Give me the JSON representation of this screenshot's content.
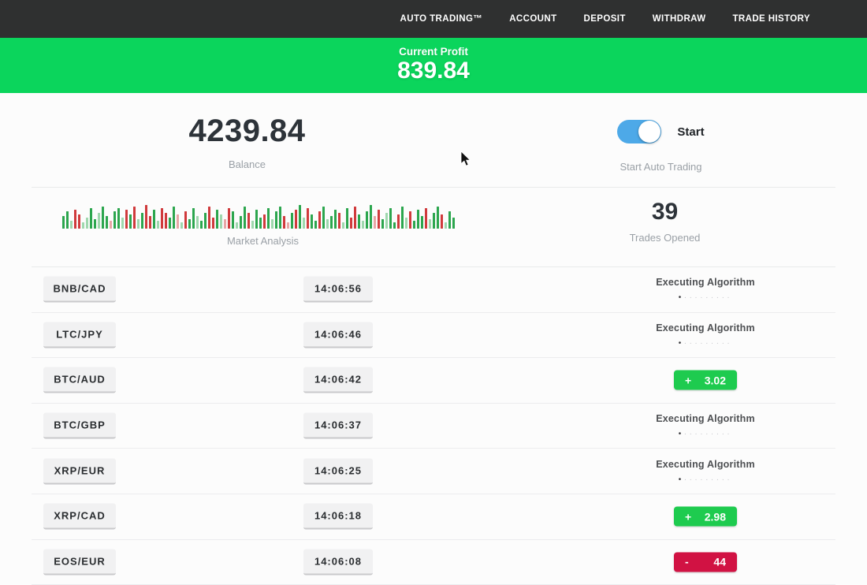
{
  "navbar": {
    "items": [
      {
        "label": "AUTO TRADING™"
      },
      {
        "label": "ACCOUNT"
      },
      {
        "label": "DEPOSIT"
      },
      {
        "label": "WITHDRAW"
      },
      {
        "label": "TRADE HISTORY"
      }
    ]
  },
  "profit_banner": {
    "label": "Current Profit",
    "value": "839.84",
    "bg_color": "#0bd55c"
  },
  "stats": {
    "balance": {
      "value": "4239.84",
      "label": "Balance"
    },
    "auto_trading": {
      "state": "on",
      "toggle_label": "Start",
      "caption": "Start Auto Trading",
      "toggle_color": "#4da9e8"
    },
    "market_analysis": {
      "label": "Market Analysis"
    },
    "trades_opened": {
      "value": "39",
      "label": "Trades Opened"
    }
  },
  "loader": {
    "active_dot": "•",
    "inactive_dots": "·········"
  },
  "colors": {
    "badge_green": "#1ecb4f",
    "badge_red": "#d11243",
    "navbar_bg": "#2f3030"
  },
  "trades": [
    {
      "pair": "BNB/CAD",
      "time": "14:06:56",
      "status": "Executing Algorithm"
    },
    {
      "pair": "LTC/JPY",
      "time": "14:06:46",
      "status": "Executing Algorithm"
    },
    {
      "pair": "BTC/AUD",
      "time": "14:06:42",
      "result_sign": "+",
      "result_value": "3.02",
      "result_type": "profit"
    },
    {
      "pair": "BTC/GBP",
      "time": "14:06:37",
      "status": "Executing Algorithm"
    },
    {
      "pair": "XRP/EUR",
      "time": "14:06:25",
      "status": "Executing Algorithm"
    },
    {
      "pair": "XRP/CAD",
      "time": "14:06:18",
      "result_sign": "+",
      "result_value": "2.98",
      "result_type": "profit"
    },
    {
      "pair": "EOS/EUR",
      "time": "14:06:08",
      "result_sign": "-",
      "result_value": "44",
      "result_type": "loss"
    }
  ],
  "chart_data": {
    "type": "bar",
    "title": "Market Analysis",
    "note": "decorative candlestick-style activity sparkline, bottom-aligned bars, heights in px",
    "palette": {
      "g": "#2ca64e",
      "r": "#d03a3c",
      "G": "#9fd8ae",
      "R": "#e8a6a6"
    },
    "bars": [
      [
        16,
        "g"
      ],
      [
        22,
        "g"
      ],
      [
        10,
        "G"
      ],
      [
        24,
        "r"
      ],
      [
        18,
        "r"
      ],
      [
        8,
        "G"
      ],
      [
        14,
        "G"
      ],
      [
        26,
        "g"
      ],
      [
        12,
        "g"
      ],
      [
        20,
        "G"
      ],
      [
        28,
        "g"
      ],
      [
        16,
        "g"
      ],
      [
        10,
        "R"
      ],
      [
        22,
        "g"
      ],
      [
        26,
        "g"
      ],
      [
        14,
        "G"
      ],
      [
        24,
        "r"
      ],
      [
        18,
        "g"
      ],
      [
        28,
        "r"
      ],
      [
        12,
        "G"
      ],
      [
        20,
        "g"
      ],
      [
        30,
        "r"
      ],
      [
        16,
        "r"
      ],
      [
        24,
        "g"
      ],
      [
        10,
        "G"
      ],
      [
        26,
        "r"
      ],
      [
        20,
        "r"
      ],
      [
        14,
        "g"
      ],
      [
        28,
        "g"
      ],
      [
        18,
        "R"
      ],
      [
        8,
        "G"
      ],
      [
        22,
        "r"
      ],
      [
        12,
        "g"
      ],
      [
        26,
        "g"
      ],
      [
        16,
        "G"
      ],
      [
        10,
        "g"
      ],
      [
        20,
        "g"
      ],
      [
        28,
        "r"
      ],
      [
        14,
        "r"
      ],
      [
        24,
        "g"
      ],
      [
        18,
        "G"
      ],
      [
        12,
        "R"
      ],
      [
        26,
        "r"
      ],
      [
        22,
        "g"
      ],
      [
        8,
        "G"
      ],
      [
        16,
        "g"
      ],
      [
        28,
        "g"
      ],
      [
        20,
        "r"
      ],
      [
        10,
        "G"
      ],
      [
        24,
        "g"
      ],
      [
        14,
        "g"
      ],
      [
        18,
        "r"
      ],
      [
        26,
        "g"
      ],
      [
        12,
        "G"
      ],
      [
        22,
        "g"
      ],
      [
        28,
        "g"
      ],
      [
        16,
        "r"
      ],
      [
        8,
        "R"
      ],
      [
        20,
        "g"
      ],
      [
        24,
        "r"
      ],
      [
        30,
        "g"
      ],
      [
        14,
        "G"
      ],
      [
        26,
        "r"
      ],
      [
        18,
        "g"
      ],
      [
        10,
        "g"
      ],
      [
        22,
        "r"
      ],
      [
        28,
        "g"
      ],
      [
        12,
        "G"
      ],
      [
        16,
        "g"
      ],
      [
        24,
        "g"
      ],
      [
        20,
        "r"
      ],
      [
        8,
        "G"
      ],
      [
        26,
        "g"
      ],
      [
        14,
        "r"
      ],
      [
        28,
        "r"
      ],
      [
        18,
        "g"
      ],
      [
        10,
        "G"
      ],
      [
        22,
        "g"
      ],
      [
        30,
        "g"
      ],
      [
        16,
        "R"
      ],
      [
        24,
        "r"
      ],
      [
        12,
        "g"
      ],
      [
        20,
        "G"
      ],
      [
        26,
        "g"
      ],
      [
        8,
        "g"
      ],
      [
        18,
        "r"
      ],
      [
        28,
        "g"
      ],
      [
        14,
        "G"
      ],
      [
        22,
        "r"
      ],
      [
        10,
        "g"
      ],
      [
        24,
        "g"
      ],
      [
        16,
        "g"
      ],
      [
        26,
        "r"
      ],
      [
        12,
        "G"
      ],
      [
        20,
        "g"
      ],
      [
        28,
        "g"
      ],
      [
        18,
        "r"
      ],
      [
        8,
        "G"
      ],
      [
        22,
        "g"
      ],
      [
        14,
        "g"
      ]
    ]
  }
}
